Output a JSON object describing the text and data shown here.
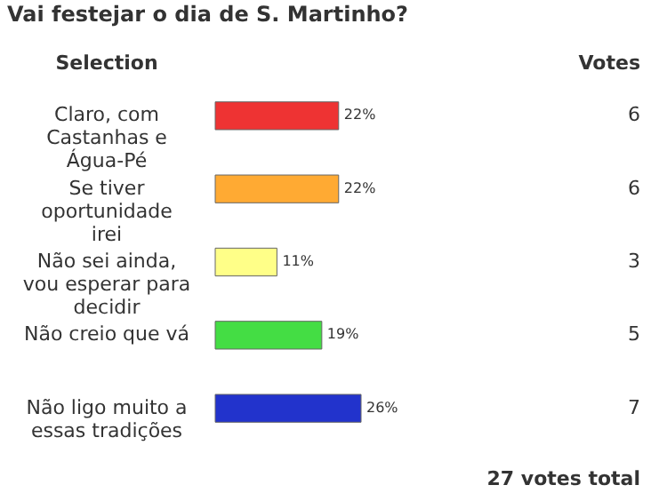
{
  "chart_data": {
    "type": "bar",
    "orientation": "horizontal",
    "title": "Vai festejar o dia de S. Martinho?",
    "ylabel": "Selection",
    "categories": [
      "Claro, com Castanhas e Água-Pé",
      "Se tiver oportunidade irei",
      "Não sei ainda, vou esperar para decidir",
      "Não creio que vá",
      "Não ligo muito a essas tradições"
    ],
    "values": [
      22,
      22,
      11,
      19,
      26
    ],
    "colors": [
      "#ee3333",
      "#ffaa33",
      "#ffff88",
      "#44dd44",
      "#2233cc"
    ],
    "value_labels": [
      "22%",
      "22%",
      "11%",
      "19%",
      "26%"
    ],
    "annotations": [
      "Votes",
      "27 votes total",
      "6",
      "6",
      "3",
      "5",
      "7"
    ]
  }
}
